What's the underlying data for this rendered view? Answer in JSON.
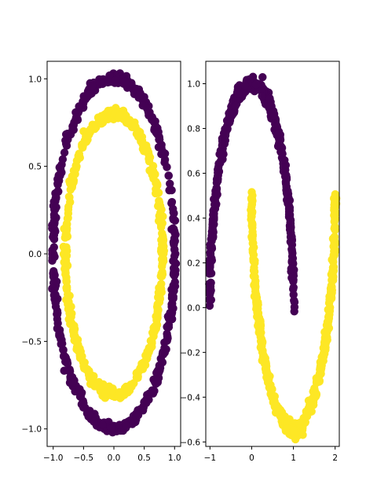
{
  "chart_data": [
    {
      "type": "scatter",
      "title": "",
      "xlabel": "",
      "ylabel": "",
      "xlim": [
        -1.1,
        1.1
      ],
      "ylim": [
        -1.1,
        1.1
      ],
      "xticks": [
        "−1.0",
        "−0.5",
        "0.0",
        "0.5",
        "1.0"
      ],
      "xtick_values": [
        -1.0,
        -0.5,
        0.0,
        0.5,
        1.0
      ],
      "yticks": [
        "−1.0",
        "−0.5",
        "0.0",
        "0.5",
        "1.0"
      ],
      "ytick_values": [
        -1.0,
        -0.5,
        0.0,
        0.5,
        1.0
      ],
      "grid": false,
      "series": [
        {
          "color": "#440154",
          "shape": "circle",
          "center": [
            0.0,
            0.0
          ],
          "radius": 1.0,
          "points": 500
        },
        {
          "color": "#fde725",
          "shape": "circle",
          "center": [
            0.0,
            0.0
          ],
          "radius": 0.8,
          "points": 500
        }
      ]
    },
    {
      "type": "scatter",
      "title": "",
      "xlabel": "",
      "ylabel": "",
      "xlim": [
        -1.1,
        2.1
      ],
      "ylim": [
        -0.62,
        1.1
      ],
      "xticks": [
        "−1",
        "0",
        "1",
        "2"
      ],
      "xtick_values": [
        -1,
        0,
        1,
        2
      ],
      "yticks": [
        "−0.6",
        "−0.4",
        "−0.2",
        "0.0",
        "0.2",
        "0.4",
        "0.6",
        "0.8",
        "1.0"
      ],
      "ytick_values": [
        -0.6,
        -0.4,
        -0.2,
        0.0,
        0.2,
        0.4,
        0.6,
        0.8,
        1.0
      ],
      "grid": false,
      "series": [
        {
          "color": "#440154",
          "shape": "upper-moon",
          "x_range": [
            -1.0,
            1.0
          ],
          "y_range": [
            0.0,
            1.0
          ],
          "points": 500
        },
        {
          "color": "#fde725",
          "shape": "lower-moon",
          "x_range": [
            0.0,
            2.0
          ],
          "y_range": [
            -0.5,
            0.5
          ],
          "points": 500
        }
      ]
    }
  ]
}
